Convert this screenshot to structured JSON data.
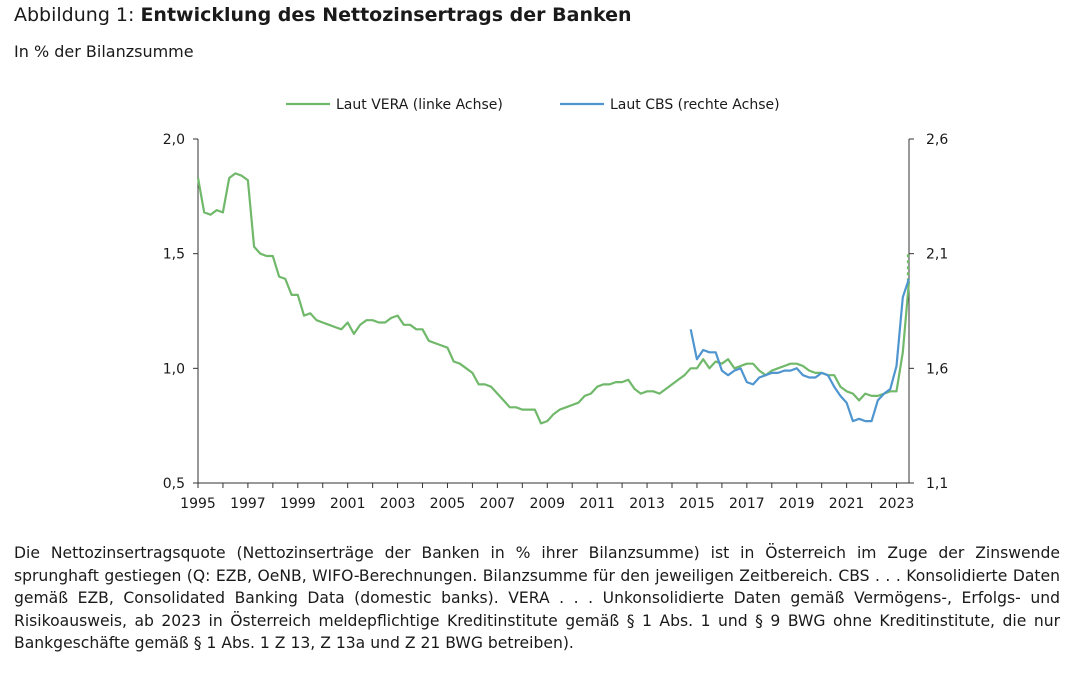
{
  "header": {
    "prefix": "Abbildung 1: ",
    "title": "Entwicklung des Nettozinsertrags der Banken",
    "subtitle": "In % der Bilanzsumme"
  },
  "note": "Die Nettozinsertragsquote (Nettozinserträge der Banken in % ihrer Bilanzsumme) ist in Österreich im Zuge der Zinswende sprunghaft gestiegen (Q: EZB, OeNB, WIFO-Berechnungen. Bilanzsumme für den jeweiligen Zeitbereich. CBS . . . Konsolidierte Daten gemäß EZB, Consolidated Banking Data (domestic banks). VERA . . . Unkonsolidierte Daten gemäß Vermögens-, Erfolgs- und Risikoausweis, ab 2023 in Österreich meldepflichtige Kreditinstitute gemäß § 1 Abs. 1 und § 9 BWG ohne Kreditinstitute, die nur Bankgeschäfte gemäß § 1 Abs. 1 Z 13, Z 13a und Z 21 BWG betreiben).",
  "chart_data": {
    "type": "line",
    "xlim": [
      1995,
      2023.5
    ],
    "x_ticks": [
      "1995",
      "1997",
      "1999",
      "2001",
      "2003",
      "2005",
      "2007",
      "2009",
      "2011",
      "2013",
      "2015",
      "2017",
      "2019",
      "2021",
      "2023"
    ],
    "x_tick_values": [
      1995,
      1997,
      1999,
      2001,
      2003,
      2005,
      2007,
      2009,
      2011,
      2013,
      2015,
      2017,
      2019,
      2021,
      2023
    ],
    "y_left": {
      "ylim": [
        0.5,
        2.0
      ],
      "ticks": [
        "2,0",
        "1,5",
        "1,0",
        "0,5"
      ],
      "tick_values": [
        2.0,
        1.5,
        1.0,
        0.5
      ]
    },
    "y_right": {
      "ylim": [
        1.1,
        2.6
      ],
      "ticks": [
        "2,6",
        "2,1",
        "1,6",
        "1,1"
      ],
      "tick_values": [
        2.6,
        2.1,
        1.6,
        1.1
      ]
    },
    "legend_position": "top",
    "grid": false,
    "series": [
      {
        "name": "Laut VERA (linke Achse)",
        "axis": "left",
        "color": "#70b86a",
        "points": [
          [
            1995.0,
            1.83
          ],
          [
            1995.25,
            1.68
          ],
          [
            1995.5,
            1.67
          ],
          [
            1995.75,
            1.69
          ],
          [
            1996.0,
            1.68
          ],
          [
            1996.25,
            1.83
          ],
          [
            1996.5,
            1.85
          ],
          [
            1996.75,
            1.84
          ],
          [
            1997.0,
            1.82
          ],
          [
            1997.25,
            1.53
          ],
          [
            1997.5,
            1.5
          ],
          [
            1997.75,
            1.49
          ],
          [
            1998.0,
            1.49
          ],
          [
            1998.25,
            1.4
          ],
          [
            1998.5,
            1.39
          ],
          [
            1998.75,
            1.32
          ],
          [
            1999.0,
            1.32
          ],
          [
            1999.25,
            1.23
          ],
          [
            1999.5,
            1.24
          ],
          [
            1999.75,
            1.21
          ],
          [
            2000.0,
            1.2
          ],
          [
            2000.25,
            1.19
          ],
          [
            2000.5,
            1.18
          ],
          [
            2000.75,
            1.17
          ],
          [
            2001.0,
            1.2
          ],
          [
            2001.25,
            1.15
          ],
          [
            2001.5,
            1.19
          ],
          [
            2001.75,
            1.21
          ],
          [
            2002.0,
            1.21
          ],
          [
            2002.25,
            1.2
          ],
          [
            2002.5,
            1.2
          ],
          [
            2002.75,
            1.22
          ],
          [
            2003.0,
            1.23
          ],
          [
            2003.25,
            1.19
          ],
          [
            2003.5,
            1.19
          ],
          [
            2003.75,
            1.17
          ],
          [
            2004.0,
            1.17
          ],
          [
            2004.25,
            1.12
          ],
          [
            2004.5,
            1.11
          ],
          [
            2004.75,
            1.1
          ],
          [
            2005.0,
            1.09
          ],
          [
            2005.25,
            1.03
          ],
          [
            2005.5,
            1.02
          ],
          [
            2005.75,
            1.0
          ],
          [
            2006.0,
            0.98
          ],
          [
            2006.25,
            0.93
          ],
          [
            2006.5,
            0.93
          ],
          [
            2006.75,
            0.92
          ],
          [
            2007.0,
            0.89
          ],
          [
            2007.25,
            0.86
          ],
          [
            2007.5,
            0.83
          ],
          [
            2007.75,
            0.83
          ],
          [
            2008.0,
            0.82
          ],
          [
            2008.25,
            0.82
          ],
          [
            2008.5,
            0.82
          ],
          [
            2008.75,
            0.76
          ],
          [
            2009.0,
            0.77
          ],
          [
            2009.25,
            0.8
          ],
          [
            2009.5,
            0.82
          ],
          [
            2009.75,
            0.83
          ],
          [
            2010.0,
            0.84
          ],
          [
            2010.25,
            0.85
          ],
          [
            2010.5,
            0.88
          ],
          [
            2010.75,
            0.89
          ],
          [
            2011.0,
            0.92
          ],
          [
            2011.25,
            0.93
          ],
          [
            2011.5,
            0.93
          ],
          [
            2011.75,
            0.94
          ],
          [
            2012.0,
            0.94
          ],
          [
            2012.25,
            0.95
          ],
          [
            2012.5,
            0.91
          ],
          [
            2012.75,
            0.89
          ],
          [
            2013.0,
            0.9
          ],
          [
            2013.25,
            0.9
          ],
          [
            2013.5,
            0.89
          ],
          [
            2013.75,
            0.91
          ],
          [
            2014.0,
            0.93
          ],
          [
            2014.25,
            0.95
          ],
          [
            2014.5,
            0.97
          ],
          [
            2014.75,
            1.0
          ],
          [
            2015.0,
            1.0
          ],
          [
            2015.25,
            1.04
          ],
          [
            2015.5,
            1.0
          ],
          [
            2015.75,
            1.03
          ],
          [
            2016.0,
            1.02
          ],
          [
            2016.25,
            1.04
          ],
          [
            2016.5,
            1.0
          ],
          [
            2016.75,
            1.01
          ],
          [
            2017.0,
            1.02
          ],
          [
            2017.25,
            1.02
          ],
          [
            2017.5,
            0.99
          ],
          [
            2017.75,
            0.97
          ],
          [
            2018.0,
            0.99
          ],
          [
            2018.25,
            1.0
          ],
          [
            2018.5,
            1.01
          ],
          [
            2018.75,
            1.02
          ],
          [
            2019.0,
            1.02
          ],
          [
            2019.25,
            1.01
          ],
          [
            2019.5,
            0.99
          ],
          [
            2019.75,
            0.98
          ],
          [
            2020.0,
            0.98
          ],
          [
            2020.25,
            0.97
          ],
          [
            2020.5,
            0.97
          ],
          [
            2020.75,
            0.92
          ],
          [
            2021.0,
            0.9
          ],
          [
            2021.25,
            0.89
          ],
          [
            2021.5,
            0.86
          ],
          [
            2021.75,
            0.89
          ],
          [
            2022.0,
            0.88
          ],
          [
            2022.25,
            0.88
          ],
          [
            2022.5,
            0.89
          ],
          [
            2022.75,
            0.9
          ],
          [
            2023.0,
            0.9
          ],
          [
            2023.25,
            1.07
          ],
          [
            2023.5,
            1.38
          ]
        ],
        "dashed_extension": [
          [
            2023.5,
            1.38
          ],
          [
            2023.75,
            1.45
          ],
          [
            2024.0,
            1.5
          ]
        ]
      },
      {
        "name": "Laut CBS (rechte Achse)",
        "axis": "right",
        "color": "#4f95cf",
        "points": [
          [
            2014.75,
            1.77
          ],
          [
            2015.0,
            1.64
          ],
          [
            2015.25,
            1.68
          ],
          [
            2015.5,
            1.67
          ],
          [
            2015.75,
            1.67
          ],
          [
            2016.0,
            1.59
          ],
          [
            2016.25,
            1.57
          ],
          [
            2016.5,
            1.59
          ],
          [
            2016.75,
            1.6
          ],
          [
            2017.0,
            1.54
          ],
          [
            2017.25,
            1.53
          ],
          [
            2017.5,
            1.56
          ],
          [
            2017.75,
            1.57
          ],
          [
            2018.0,
            1.58
          ],
          [
            2018.25,
            1.58
          ],
          [
            2018.5,
            1.59
          ],
          [
            2018.75,
            1.59
          ],
          [
            2019.0,
            1.6
          ],
          [
            2019.25,
            1.57
          ],
          [
            2019.5,
            1.56
          ],
          [
            2019.75,
            1.56
          ],
          [
            2020.0,
            1.58
          ],
          [
            2020.25,
            1.57
          ],
          [
            2020.5,
            1.52
          ],
          [
            2020.75,
            1.48
          ],
          [
            2021.0,
            1.45
          ],
          [
            2021.25,
            1.37
          ],
          [
            2021.5,
            1.38
          ],
          [
            2021.75,
            1.37
          ],
          [
            2022.0,
            1.37
          ],
          [
            2022.25,
            1.46
          ],
          [
            2022.5,
            1.49
          ],
          [
            2022.75,
            1.51
          ],
          [
            2023.0,
            1.61
          ],
          [
            2023.25,
            1.91
          ],
          [
            2023.5,
            1.99
          ]
        ]
      }
    ]
  }
}
